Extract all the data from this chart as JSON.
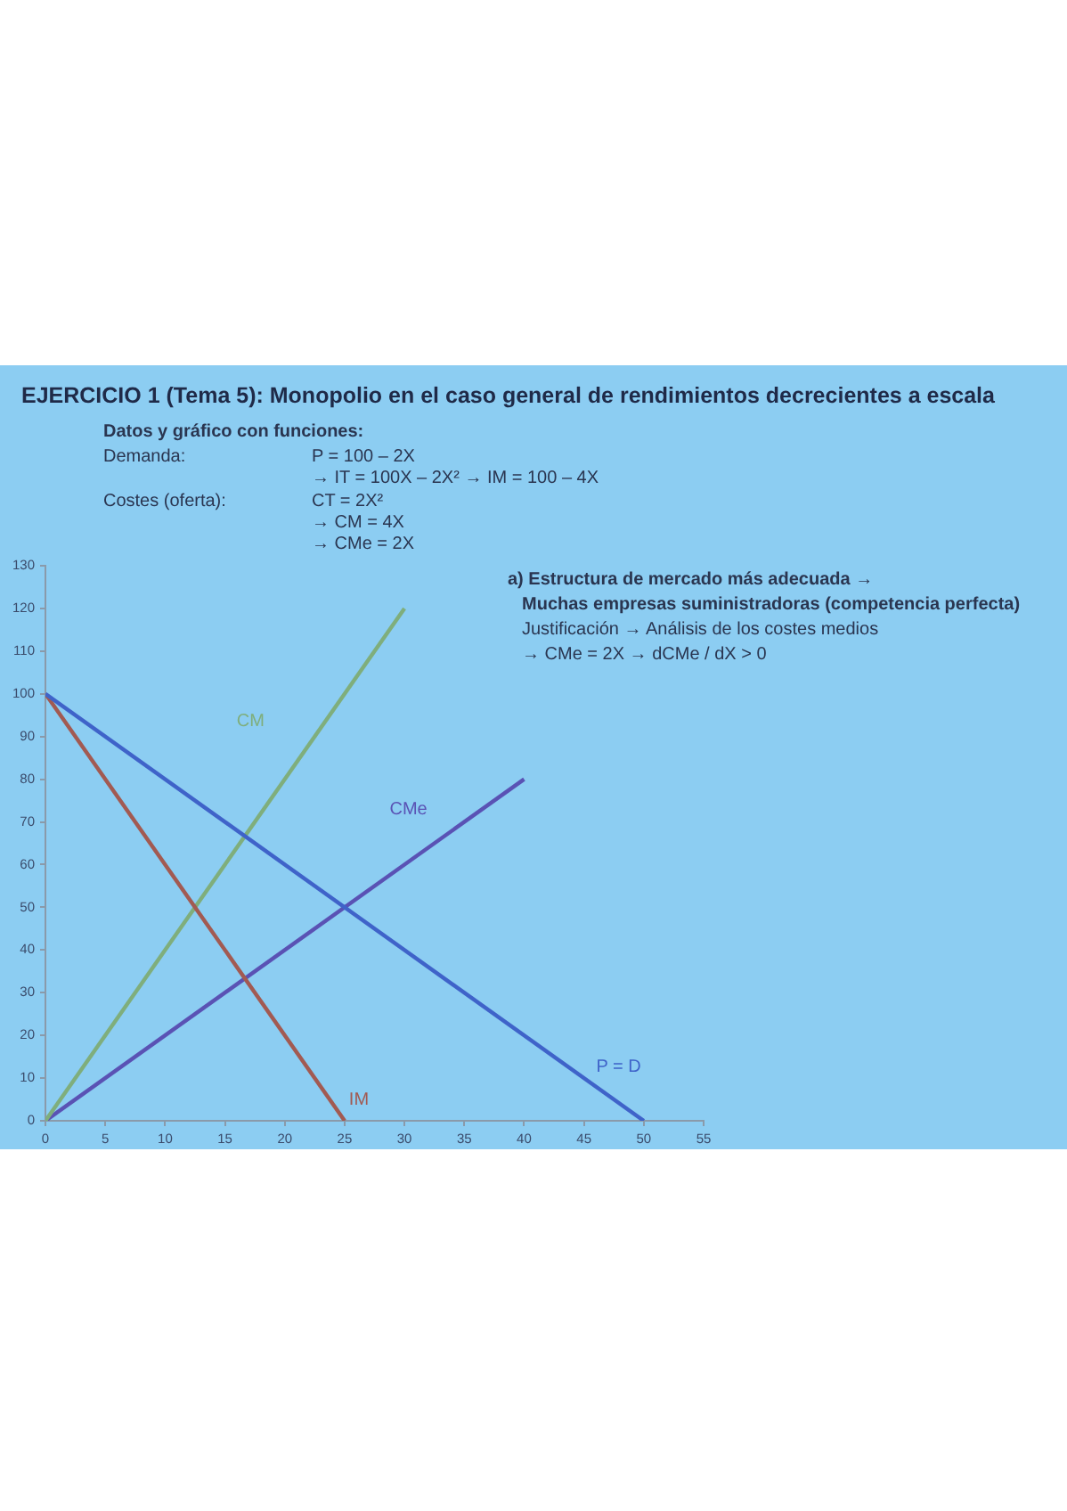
{
  "chart_data": {
    "type": "line",
    "title": "EJERCICIO 1 (Tema 5): Monopolio en el caso general de rendimientos decrecientes a escala",
    "subtitle": "Datos y gráfico con funciones:",
    "annotations": [
      "Demanda:",
      "P = 100 – 2X",
      "→  IT = 100X – 2X²   →   IM = 100 – 4X",
      "Costes (oferta):",
      "CT = 2X²",
      "→  CM = 4X",
      "→  CMe = 2X",
      "a) Estructura de mercado más adecuada →",
      "Muchas empresas suministradoras (competencia perfecta)",
      "Justificación → Análisis de los costes medios",
      "→ CMe = 2X  →  dCMe / dX > 0"
    ],
    "series": [
      {
        "name": "P = D",
        "color": "#3f63c9",
        "x": [
          0,
          50
        ],
        "values": [
          100,
          0
        ]
      },
      {
        "name": "IM",
        "color": "#a25a52",
        "x": [
          0,
          25
        ],
        "values": [
          100,
          0
        ]
      },
      {
        "name": "CM",
        "color": "#7fae7c",
        "x": [
          0,
          30
        ],
        "values": [
          0,
          120
        ]
      },
      {
        "name": "CMe",
        "color": "#5a52b4",
        "x": [
          0,
          40
        ],
        "values": [
          0,
          80
        ]
      }
    ],
    "xlim": [
      0,
      55
    ],
    "xticks": [
      0,
      5,
      10,
      15,
      20,
      25,
      30,
      35,
      40,
      45,
      50,
      55
    ],
    "ylim": [
      0,
      130
    ],
    "yticks": [
      0,
      10,
      20,
      30,
      40,
      50,
      60,
      70,
      80,
      90,
      100,
      110,
      120,
      130
    ],
    "grid": false,
    "legend": false,
    "marker": "none",
    "line_style": "solid"
  }
}
